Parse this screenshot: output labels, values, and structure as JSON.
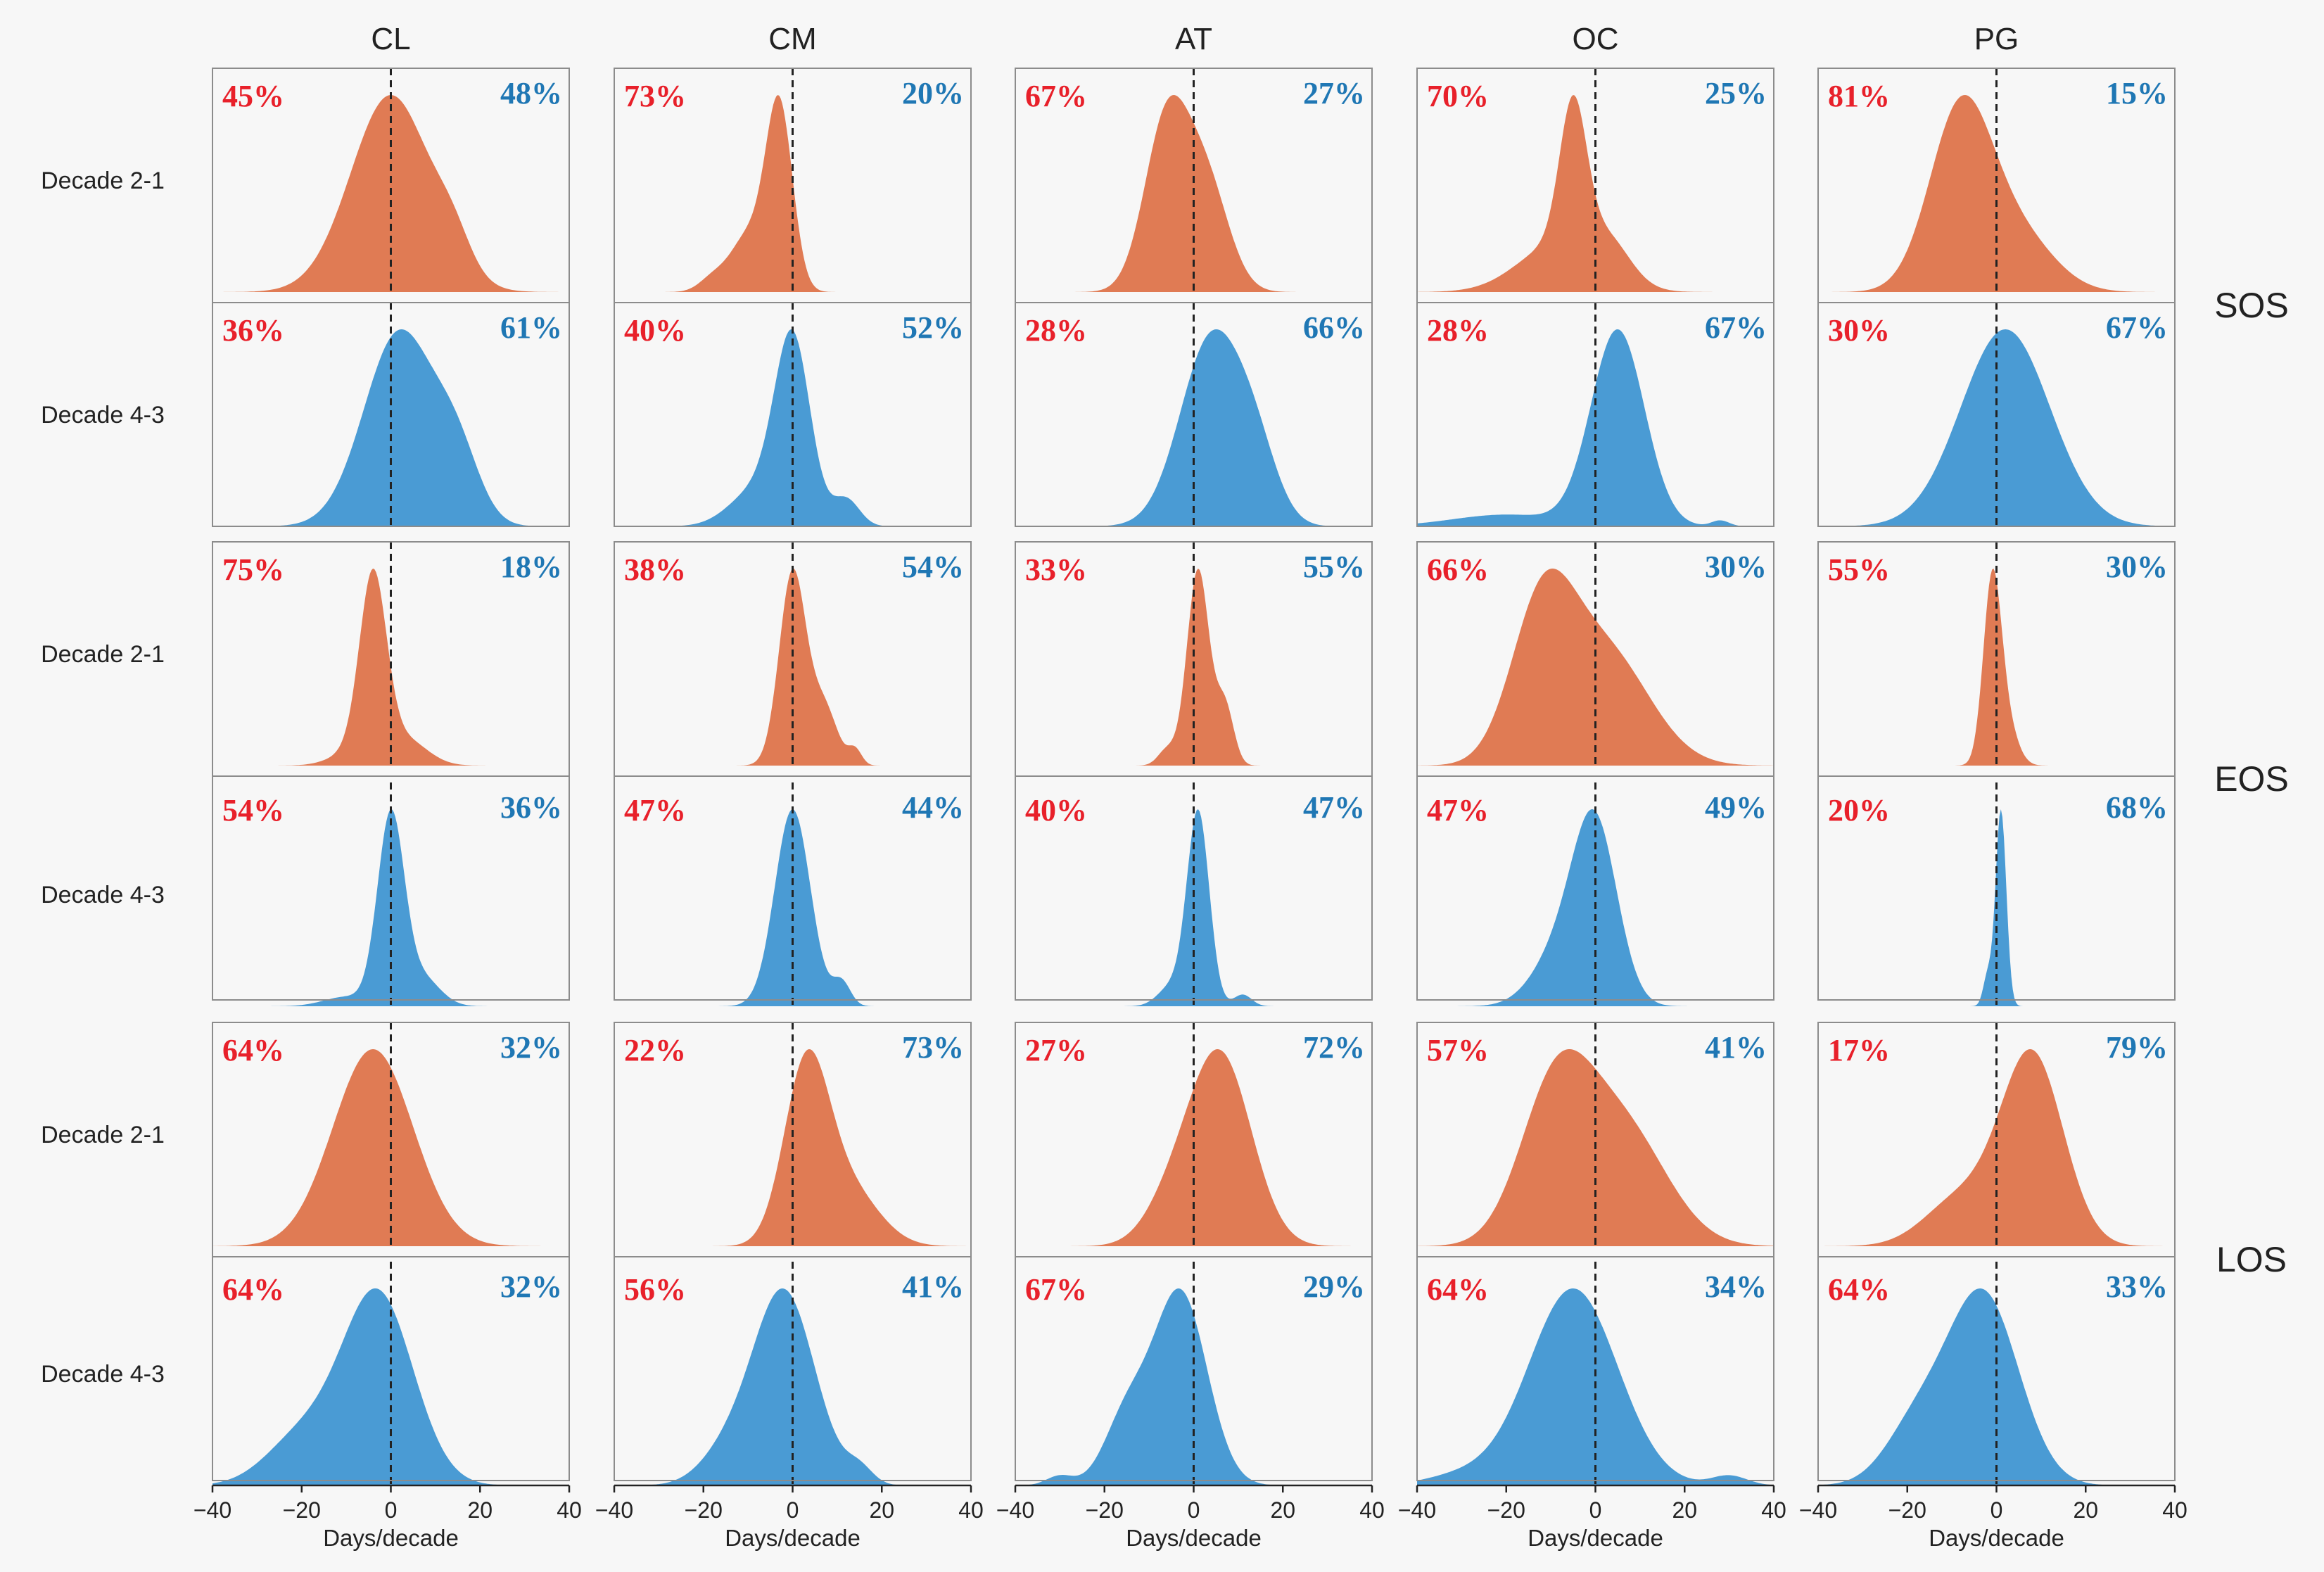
{
  "chart_data": {
    "type": "area",
    "description_axis": "kernel density of change",
    "xlabel": "Days/decade",
    "xlim": [
      -40,
      40
    ],
    "xticks": [
      -40,
      -20,
      0,
      20,
      40
    ],
    "xtick_labels": [
      "−40",
      "−20",
      "0",
      "20",
      "40"
    ],
    "columns": [
      "CL",
      "CM",
      "AT",
      "OC",
      "PG"
    ],
    "groups": [
      {
        "name": "SOS",
        "rows": [
          {
            "label": "Decade 2-1",
            "color": "#e07b54",
            "left_pct": [
              "45%",
              "73%",
              "67%",
              "70%",
              "81%"
            ],
            "right_pct": [
              "48%",
              "20%",
              "27%",
              "25%",
              "15%"
            ]
          },
          {
            "label": "Decade 4-3",
            "color": "#4a9bd4",
            "left_pct": [
              "36%",
              "40%",
              "28%",
              "28%",
              "30%"
            ],
            "right_pct": [
              "61%",
              "52%",
              "66%",
              "67%",
              "67%"
            ]
          }
        ]
      },
      {
        "name": "EOS",
        "rows": [
          {
            "label": "Decade 2-1",
            "color": "#e07b54",
            "left_pct": [
              "75%",
              "38%",
              "33%",
              "66%",
              "55%"
            ],
            "right_pct": [
              "18%",
              "54%",
              "55%",
              "30%",
              "30%"
            ]
          },
          {
            "label": "Decade 4-3",
            "color": "#4a9bd4",
            "left_pct": [
              "54%",
              "47%",
              "40%",
              "47%",
              "20%"
            ],
            "right_pct": [
              "36%",
              "44%",
              "47%",
              "49%",
              "68%"
            ]
          }
        ]
      },
      {
        "name": "LOS",
        "rows": [
          {
            "label": "Decade 2-1",
            "color": "#e07b54",
            "left_pct": [
              "64%",
              "22%",
              "27%",
              "57%",
              "17%"
            ],
            "right_pct": [
              "32%",
              "73%",
              "72%",
              "41%",
              "79%"
            ]
          },
          {
            "label": "Decade 4-3",
            "color": "#4a9bd4",
            "left_pct": [
              "64%",
              "56%",
              "67%",
              "64%",
              "64%"
            ],
            "right_pct": [
              "32%",
              "41%",
              "29%",
              "34%",
              "33%"
            ]
          }
        ]
      }
    ],
    "densities": [
      [
        [
          {
            "m": 0,
            "s": 9,
            "a": 1.0
          },
          {
            "m": 14,
            "s": 4,
            "a": 0.15
          }
        ],
        [
          {
            "m": -3,
            "s": 3,
            "a": 1.0
          },
          {
            "m": -10,
            "s": 4,
            "a": 0.3
          },
          {
            "m": -18,
            "s": 3,
            "a": 0.07
          }
        ],
        [
          {
            "m": -6,
            "s": 5,
            "a": 1.0
          },
          {
            "m": 3,
            "s": 5,
            "a": 0.6
          }
        ],
        [
          {
            "m": -5,
            "s": 3,
            "a": 1.0
          },
          {
            "m": -8,
            "s": 9,
            "a": 0.35
          },
          {
            "m": 3,
            "s": 5,
            "a": 0.25
          }
        ],
        [
          {
            "m": -8,
            "s": 7,
            "a": 1.0
          },
          {
            "m": 5,
            "s": 8,
            "a": 0.3
          }
        ]
      ],
      [
        [
          {
            "m": 2,
            "s": 8,
            "a": 1.0
          },
          {
            "m": 15,
            "s": 5,
            "a": 0.3
          }
        ],
        [
          {
            "m": 0,
            "s": 4,
            "a": 1.0
          },
          {
            "m": -8,
            "s": 6,
            "a": 0.2
          },
          {
            "m": 12,
            "s": 3,
            "a": 0.15
          }
        ],
        [
          {
            "m": 4,
            "s": 7,
            "a": 1.0
          },
          {
            "m": 14,
            "s": 5,
            "a": 0.3
          }
        ],
        [
          {
            "m": 5,
            "s": 6,
            "a": 1.0
          },
          {
            "m": -20,
            "s": 12,
            "a": 0.06
          },
          {
            "m": 28,
            "s": 2,
            "a": 0.03
          }
        ],
        [
          {
            "m": 2,
            "s": 10,
            "a": 1.0
          }
        ]
      ],
      [
        [
          {
            "m": -4,
            "s": 3,
            "a": 1.0
          },
          {
            "m": 3,
            "s": 5,
            "a": 0.15
          },
          {
            "m": -8,
            "s": 5,
            "a": 0.08
          }
        ],
        [
          {
            "m": 0,
            "s": 3,
            "a": 1.0
          },
          {
            "m": 7,
            "s": 3,
            "a": 0.3
          },
          {
            "m": 14,
            "s": 1.5,
            "a": 0.08
          }
        ],
        [
          {
            "m": 1,
            "s": 2.5,
            "a": 1.0
          },
          {
            "m": 7,
            "s": 2,
            "a": 0.3
          },
          {
            "m": -6,
            "s": 2,
            "a": 0.08
          }
        ],
        [
          {
            "m": -12,
            "s": 7,
            "a": 0.9
          },
          {
            "m": 2,
            "s": 10,
            "a": 0.7
          }
        ],
        [
          {
            "m": -1,
            "s": 2,
            "a": 1.0
          },
          {
            "m": 2,
            "s": 2.5,
            "a": 0.25
          }
        ]
      ],
      [
        [
          {
            "m": 0,
            "s": 3,
            "a": 1.0
          },
          {
            "m": 7,
            "s": 4,
            "a": 0.15
          },
          {
            "m": -10,
            "s": 5,
            "a": 0.05
          }
        ],
        [
          {
            "m": 0,
            "s": 4,
            "a": 1.0
          },
          {
            "m": 11,
            "s": 2,
            "a": 0.12
          }
        ],
        [
          {
            "m": 1,
            "s": 2.5,
            "a": 1.0
          },
          {
            "m": -5,
            "s": 3,
            "a": 0.1
          },
          {
            "m": 11,
            "s": 2,
            "a": 0.06
          }
        ],
        [
          {
            "m": 0,
            "s": 5,
            "a": 1.0
          },
          {
            "m": -8,
            "s": 6,
            "a": 0.3
          }
        ],
        [
          {
            "m": 1,
            "s": 1.2,
            "a": 1.0
          },
          {
            "m": -2,
            "s": 1,
            "a": 0.15
          }
        ]
      ],
      [
        [
          {
            "m": -4,
            "s": 9,
            "a": 1.0
          }
        ],
        [
          {
            "m": 3,
            "s": 5,
            "a": 1.0
          },
          {
            "m": 12,
            "s": 7,
            "a": 0.35
          }
        ],
        [
          {
            "m": 6,
            "s": 7,
            "a": 1.0
          },
          {
            "m": -5,
            "s": 6,
            "a": 0.2
          }
        ],
        [
          {
            "m": -9,
            "s": 8,
            "a": 0.9
          },
          {
            "m": 6,
            "s": 10,
            "a": 0.7
          }
        ],
        [
          {
            "m": 8,
            "s": 7,
            "a": 1.0
          },
          {
            "m": -8,
            "s": 8,
            "a": 0.25
          }
        ]
      ],
      [
        [
          {
            "m": -3,
            "s": 8,
            "a": 1.0
          },
          {
            "m": -20,
            "s": 8,
            "a": 0.25
          }
        ],
        [
          {
            "m": -2,
            "s": 7,
            "a": 1.0
          },
          {
            "m": -15,
            "s": 6,
            "a": 0.15
          },
          {
            "m": 15,
            "s": 3,
            "a": 0.08
          }
        ],
        [
          {
            "m": -3,
            "s": 6,
            "a": 1.0
          },
          {
            "m": -15,
            "s": 5,
            "a": 0.35
          },
          {
            "m": -30,
            "s": 3,
            "a": 0.05
          }
        ],
        [
          {
            "m": -5,
            "s": 10,
            "a": 1.0
          },
          {
            "m": -30,
            "s": 8,
            "a": 0.05
          },
          {
            "m": 30,
            "s": 4,
            "a": 0.05
          }
        ],
        [
          {
            "m": -3,
            "s": 8,
            "a": 1.0
          },
          {
            "m": -18,
            "s": 7,
            "a": 0.3
          }
        ]
      ]
    ]
  }
}
